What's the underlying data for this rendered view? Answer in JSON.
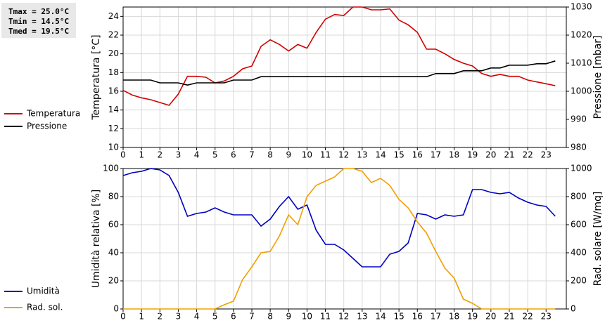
{
  "chart_data": [
    {
      "type": "line",
      "annotations": [
        "Tmax = 25.0°C",
        "Tmin = 14.5°C",
        "Tmed = 19.5°C"
      ],
      "ylabel": "Temperatura [°C]",
      "y2label": "Pressione [mbar]",
      "x": [
        0,
        0.5,
        1,
        1.5,
        2,
        2.5,
        3,
        3.5,
        4,
        4.5,
        5,
        5.5,
        6,
        6.5,
        7,
        7.5,
        8,
        8.5,
        9,
        9.5,
        10,
        10.5,
        11,
        11.5,
        12,
        12.5,
        13,
        13.5,
        14,
        14.5,
        15,
        15.5,
        16,
        16.5,
        17,
        17.5,
        18,
        18.5,
        19,
        19.5,
        20,
        20.5,
        21,
        21.5,
        22,
        22.5,
        23,
        23.5
      ],
      "xlim": [
        0,
        24.1
      ],
      "xticks": [
        0,
        1,
        2,
        3,
        4,
        5,
        6,
        7,
        8,
        9,
        10,
        11,
        12,
        13,
        14,
        15,
        16,
        17,
        18,
        19,
        20,
        21,
        22,
        23
      ],
      "ylim": [
        10,
        25
      ],
      "yticks": [
        10,
        12,
        14,
        16,
        18,
        20,
        22,
        24
      ],
      "y2lim": [
        980,
        1030
      ],
      "y2ticks": [
        980,
        990,
        1000,
        1010,
        1020,
        1030
      ],
      "grid": true,
      "legend": "left",
      "series": [
        {
          "name": "Temperatura",
          "color": "#d00000",
          "values": [
            16.1,
            15.6,
            15.3,
            15.1,
            14.8,
            14.5,
            15.7,
            17.6,
            17.6,
            17.5,
            16.9,
            17.1,
            17.6,
            18.4,
            18.7,
            20.8,
            21.5,
            21.0,
            20.3,
            21.0,
            20.6,
            22.3,
            23.7,
            24.2,
            24.1,
            25.0,
            25.0,
            24.7,
            24.7,
            24.8,
            23.6,
            23.1,
            22.3,
            20.5,
            20.5,
            20.0,
            19.4,
            19.0,
            18.7,
            17.9,
            17.6,
            17.8,
            17.6,
            17.6,
            17.2,
            17.0,
            16.8,
            16.6
          ]
        },
        {
          "name": "Pressione",
          "color": "#000000",
          "axis": "y2",
          "values": [
            1004,
            1004,
            1004,
            1004,
            1003,
            1003,
            1003,
            1002.2,
            1003,
            1003,
            1003,
            1003,
            1004,
            1004,
            1004,
            1005.2,
            1005.2,
            1005.2,
            1005.2,
            1005.2,
            1005.2,
            1005.2,
            1005.2,
            1005.2,
            1005.2,
            1005.2,
            1005.2,
            1005.2,
            1005.2,
            1005.2,
            1005.2,
            1005.2,
            1005.2,
            1005.2,
            1006.3,
            1006.3,
            1006.3,
            1007.3,
            1007.3,
            1007.3,
            1008.3,
            1008.3,
            1009.3,
            1009.3,
            1009.3,
            1009.8,
            1009.8,
            1010.8
          ]
        }
      ]
    },
    {
      "type": "line",
      "ylabel": "Umidità relativa [%]",
      "y2label": "Rad. solare [W/mq]",
      "x": [
        0,
        0.5,
        1,
        1.5,
        2,
        2.5,
        3,
        3.5,
        4,
        4.5,
        5,
        5.5,
        6,
        6.5,
        7,
        7.5,
        8,
        8.5,
        9,
        9.5,
        10,
        10.5,
        11,
        11.5,
        12,
        12.5,
        13,
        13.5,
        14,
        14.5,
        15,
        15.5,
        16,
        16.5,
        17,
        17.5,
        18,
        18.5,
        19,
        19.5,
        20,
        20.5,
        21,
        21.5,
        22,
        22.5,
        23,
        23.5
      ],
      "xlim": [
        0,
        24.1
      ],
      "xticks": [
        0,
        1,
        2,
        3,
        4,
        5,
        6,
        7,
        8,
        9,
        10,
        11,
        12,
        13,
        14,
        15,
        16,
        17,
        18,
        19,
        20,
        21,
        22,
        23
      ],
      "ylim": [
        0,
        100
      ],
      "yticks": [
        0,
        20,
        40,
        60,
        80,
        100
      ],
      "y2lim": [
        0,
        1000
      ],
      "y2ticks": [
        0,
        200,
        400,
        600,
        800,
        1000
      ],
      "grid": true,
      "legend": "left",
      "series": [
        {
          "name": "Umidità",
          "color": "#0000c0",
          "values": [
            95,
            97,
            98,
            100,
            99,
            95,
            83,
            66,
            68,
            69,
            72,
            69,
            67,
            67,
            67,
            59,
            64,
            73,
            80,
            71,
            74,
            56,
            46,
            46,
            42,
            36,
            30,
            30,
            30,
            39,
            41,
            47,
            68,
            67,
            64,
            67,
            66,
            67,
            85,
            85,
            83,
            82,
            83,
            79,
            76,
            74,
            73,
            66
          ]
        },
        {
          "name": "Rad. sol.",
          "color": "#f0a000",
          "axis": "y2",
          "values": [
            0,
            0,
            0,
            0,
            0,
            0,
            0,
            0,
            0,
            0,
            0,
            30,
            55,
            210,
            300,
            400,
            410,
            520,
            670,
            600,
            800,
            880,
            910,
            940,
            1000,
            1000,
            980,
            900,
            930,
            880,
            780,
            720,
            620,
            540,
            410,
            290,
            220,
            70,
            40,
            0,
            0,
            0,
            0,
            0,
            0,
            0,
            0,
            0
          ]
        }
      ]
    }
  ]
}
